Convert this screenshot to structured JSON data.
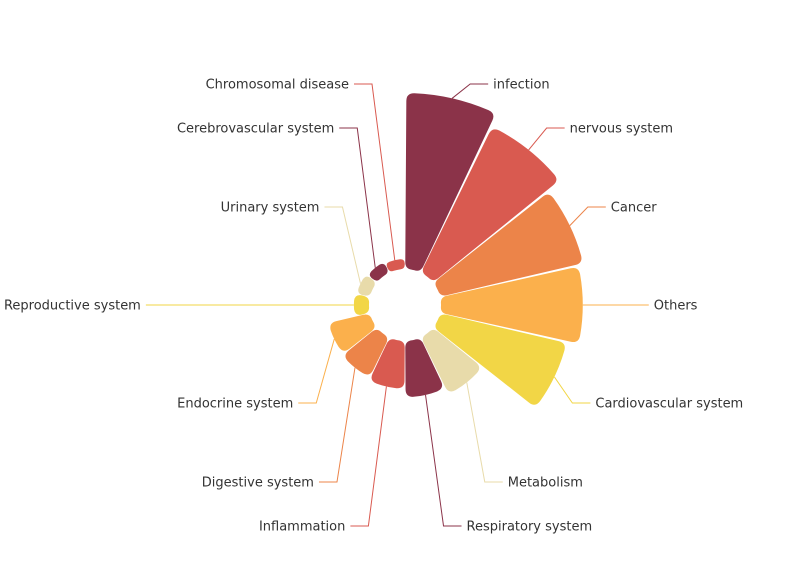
{
  "chart_data": {
    "type": "pie",
    "variant": "nightingale-rose",
    "start_angle_deg": 90,
    "direction": "clockwise",
    "slices": [
      {
        "name": "infection",
        "value": 100,
        "color": "#8b3349"
      },
      {
        "name": "nervous system",
        "value": 92,
        "color": "#d95a50"
      },
      {
        "name": "Cancer",
        "value": 83,
        "color": "#ec8449"
      },
      {
        "name": "Others",
        "value": 80,
        "color": "#fbb04c"
      },
      {
        "name": "Cardiovascular system",
        "value": 73,
        "color": "#f2d646"
      },
      {
        "name": "Metabolism",
        "value": 34,
        "color": "#e8dbaa"
      },
      {
        "name": "Respiratory system",
        "value": 30,
        "color": "#8b3349"
      },
      {
        "name": "Inflammation",
        "value": 25,
        "color": "#d95a50"
      },
      {
        "name": "Digestive system",
        "value": 23,
        "color": "#ec8449"
      },
      {
        "name": "Endocrine system",
        "value": 22,
        "color": "#fbb04c"
      },
      {
        "name": "Reproductive system",
        "value": 6,
        "color": "#f2d646"
      },
      {
        "name": "Urinary system",
        "value": 5,
        "color": "#e8dbaa"
      },
      {
        "name": "Cerebrovascular system",
        "value": 4,
        "color": "#8b3349"
      },
      {
        "name": "Chromosomal disease",
        "value": 3,
        "color": "#d95a50"
      }
    ]
  }
}
